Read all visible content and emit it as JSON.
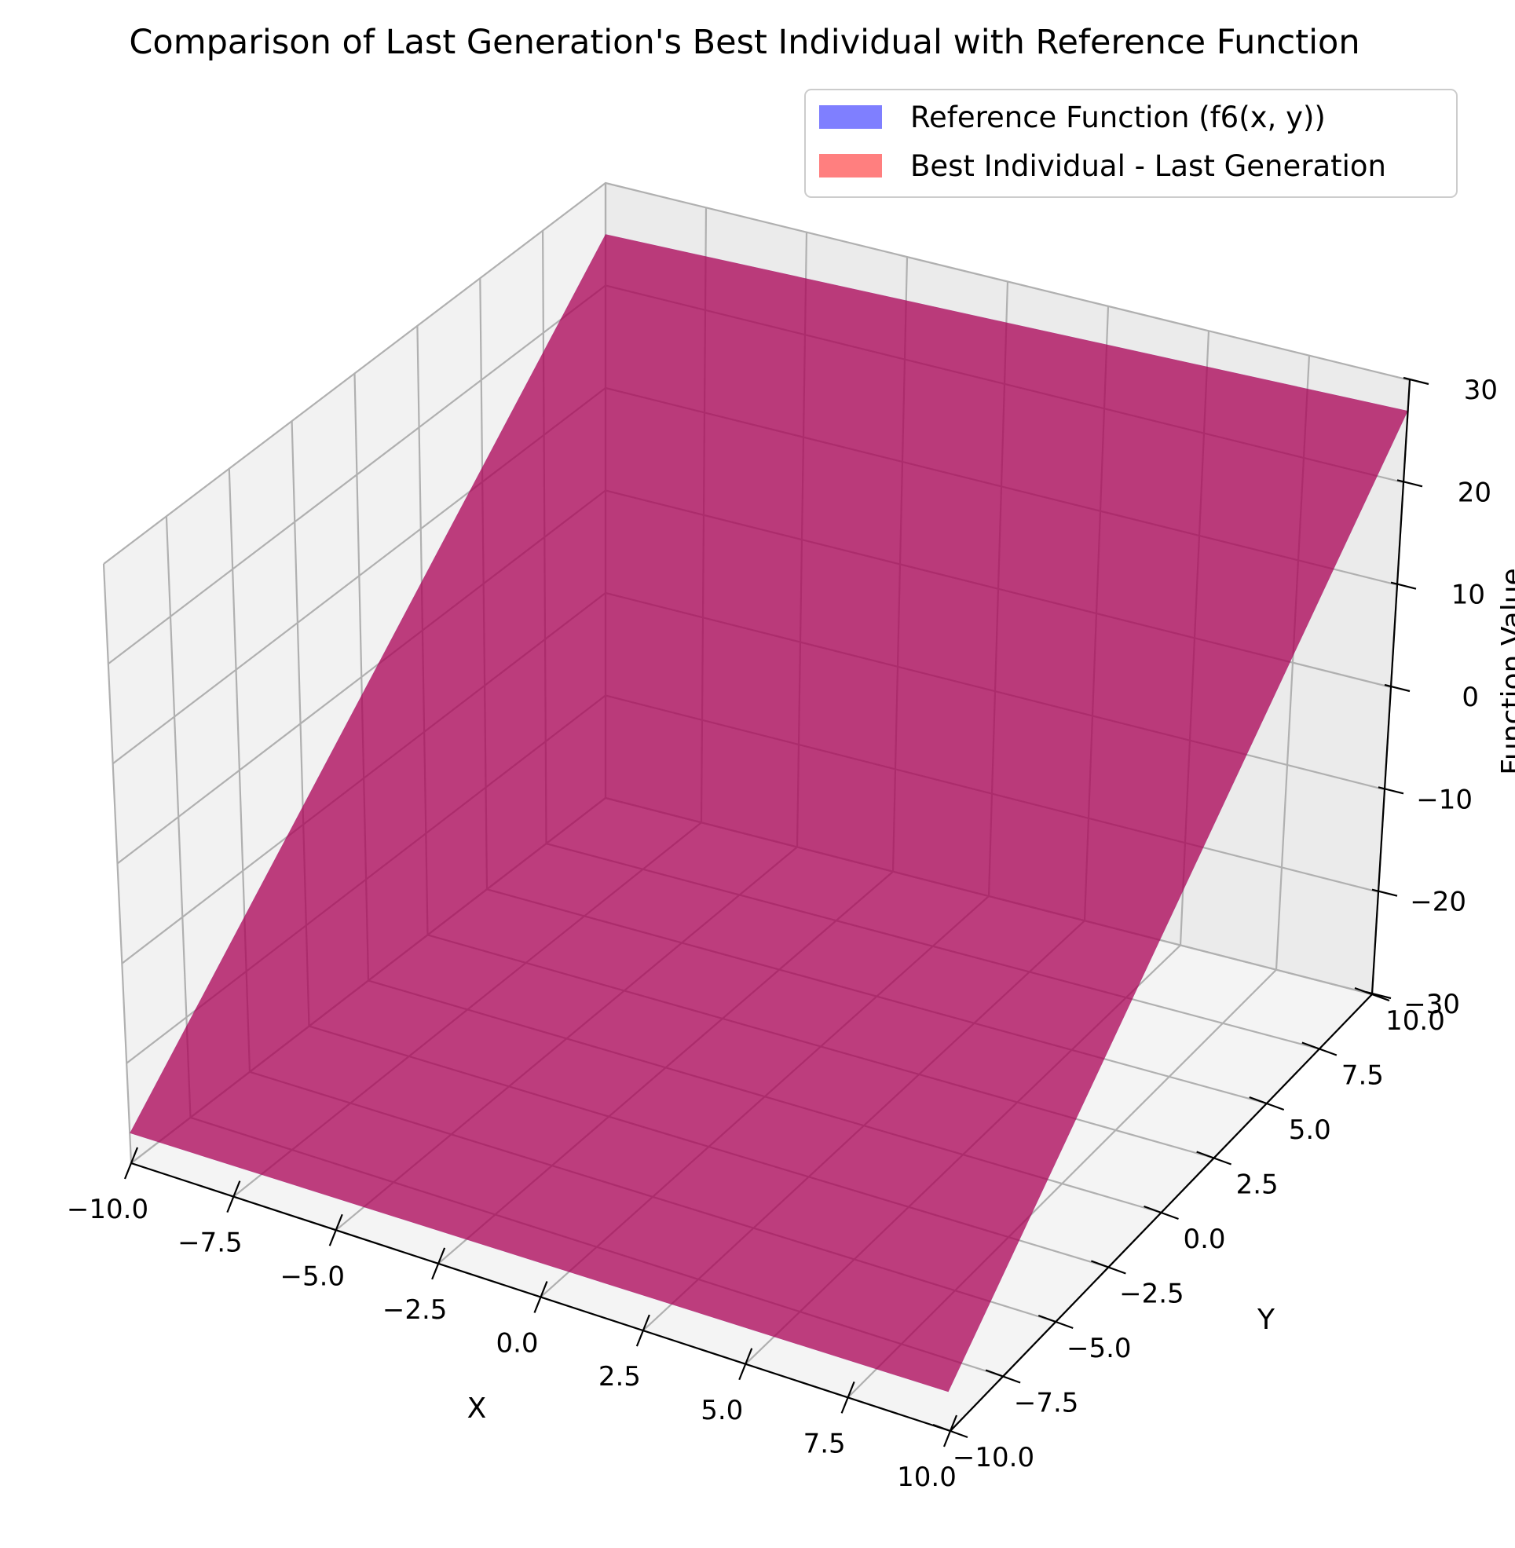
{
  "chart_data": {
    "type": "surface3d",
    "title": "Comparison of Last Generation's Best Individual with Reference Function",
    "xlabel": "X",
    "ylabel": "Y",
    "zlabel": "Function Value",
    "xlim": [
      -10,
      10
    ],
    "ylim": [
      -10,
      10
    ],
    "zlim": [
      -30,
      30
    ],
    "x_ticks": [
      "−10.0",
      "−7.5",
      "−5.0",
      "−2.5",
      "0.0",
      "2.5",
      "5.0",
      "7.5",
      "10.0"
    ],
    "y_ticks": [
      "−10.0",
      "−7.5",
      "−5.0",
      "−2.5",
      "0.0",
      "2.5",
      "5.0",
      "7.5",
      "10.0"
    ],
    "z_ticks": [
      "−30",
      "−20",
      "−10",
      "0",
      "10",
      "20",
      "30"
    ],
    "grid": true,
    "legend_position": "top-right",
    "series": [
      {
        "name": "Reference Function (f6(x, y))",
        "color": "#0000ff",
        "alpha": 0.5,
        "corners": [
          {
            "x": -10,
            "y": -10,
            "z": -27
          },
          {
            "x": 10,
            "y": -10,
            "z": -25
          },
          {
            "x": 10,
            "y": 10,
            "z": 27
          },
          {
            "x": -10,
            "y": 10,
            "z": 25
          }
        ]
      },
      {
        "name": "Best Individual - Last Generation",
        "color": "#ff0000",
        "alpha": 0.5,
        "corners": [
          {
            "x": -10,
            "y": -10,
            "z": -27
          },
          {
            "x": 10,
            "y": -10,
            "z": -25
          },
          {
            "x": 10,
            "y": 10,
            "z": 27
          },
          {
            "x": -10,
            "y": 10,
            "z": 25
          }
        ]
      }
    ]
  }
}
